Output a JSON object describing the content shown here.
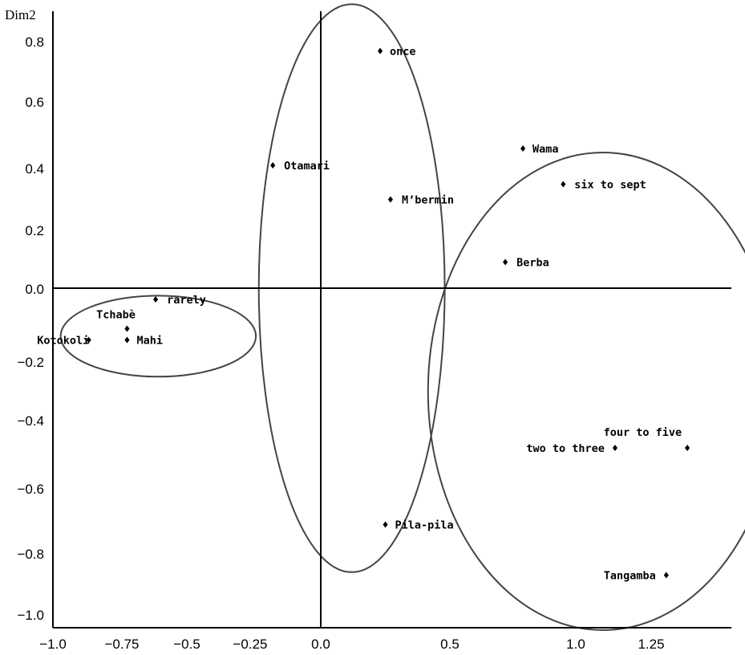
{
  "chart_data": {
    "type": "scatter",
    "title": "",
    "xlabel": "",
    "ylabel": "Dim2",
    "xlim": [
      -1.0,
      1.6
    ],
    "ylim": [
      -1.05,
      0.87
    ],
    "xticks": [
      "−1.0",
      "−0.75",
      "−0.5",
      "−0.25",
      "0.0",
      "0.5",
      "1.0",
      "1.25"
    ],
    "yticks": [
      "0.8",
      "0.6",
      "0.4",
      "0.2",
      "0.0",
      "−0.2",
      "−0.4",
      "−0.6",
      "−0.8",
      "−1.0"
    ],
    "grid": false,
    "points": [
      {
        "label": "once",
        "x": 0.23,
        "y": 0.77
      },
      {
        "label": "Otamari",
        "x": -0.17,
        "y": 0.41
      },
      {
        "label": "M’bermin",
        "x": 0.27,
        "y": 0.3
      },
      {
        "label": "Wama",
        "x": 0.79,
        "y": 0.46
      },
      {
        "label": "six to sept",
        "x": 0.95,
        "y": 0.35
      },
      {
        "label": "Berba",
        "x": 0.72,
        "y": 0.09
      },
      {
        "label": "rarely",
        "x": -0.62,
        "y": -0.03
      },
      {
        "label": "Tchabè",
        "x": -0.73,
        "y": -0.11
      },
      {
        "label": "Kotokoli",
        "x": -0.87,
        "y": -0.14
      },
      {
        "label": "Mahi",
        "x": -0.73,
        "y": -0.14
      },
      {
        "label": "four to five",
        "x": 1.37,
        "y": -0.48
      },
      {
        "label": "two to three",
        "x": 1.13,
        "y": -0.48
      },
      {
        "label": "Pila-pila",
        "x": 0.25,
        "y": -0.71
      },
      {
        "label": "Tangamba",
        "x": 1.3,
        "y": -0.87
      }
    ],
    "groups": [
      {
        "cx": -0.61,
        "cy": -0.13,
        "rx": 0.38,
        "ry": 0.12
      },
      {
        "cx": 0.12,
        "cy": 0.0,
        "rx": 0.36,
        "ry": 0.86
      },
      {
        "cx": 1.09,
        "cy": -0.3,
        "rx": 0.58,
        "ry": 0.75
      }
    ]
  }
}
